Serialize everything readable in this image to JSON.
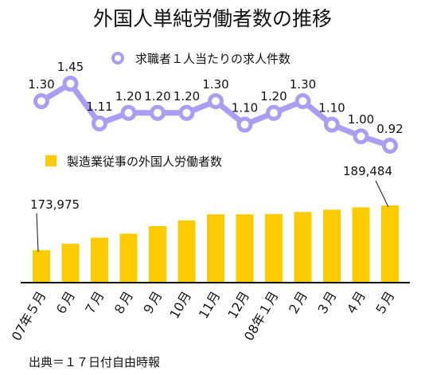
{
  "title": "外国人単純労働者数の推移",
  "source": "出典＝１７日付自由時報",
  "colors": {
    "line": "#a99ef2",
    "marker_fill": "#ffffff",
    "bar": "#fccb00",
    "text": "#111111"
  },
  "chart_data": {
    "type": "bar+line",
    "categories": [
      "07年５月",
      "６月",
      "７月",
      "８月",
      "９月",
      "10月",
      "11月",
      "12月",
      "08年１月",
      "２月",
      "３月",
      "４月",
      "５月"
    ],
    "series": [
      {
        "name": "求職者１人当たりの求人件数",
        "type": "line",
        "values": [
          1.3,
          1.45,
          1.11,
          1.2,
          1.2,
          1.2,
          1.3,
          1.1,
          1.2,
          1.3,
          1.1,
          1.0,
          0.92
        ],
        "labels": [
          "1.30",
          "1.45",
          "1.11",
          "1.20",
          "1.20",
          "1.20",
          "1.30",
          "1.10",
          "1.20",
          "1.30",
          "1.10",
          "1.00",
          "0.92"
        ]
      },
      {
        "name": "製造業従事の外国人労働者数",
        "type": "bar",
        "values": [
          173975,
          176200,
          178300,
          179700,
          182300,
          184300,
          186400,
          186400,
          186500,
          187200,
          188000,
          188800,
          189484
        ],
        "labels": [
          "173,975",
          "",
          "",
          "",
          "",
          "",
          "",
          "",
          "",
          "",
          "",
          "",
          "189,484"
        ]
      }
    ],
    "legend": [
      {
        "label": "求職者１人当たりの求人件数",
        "marker": "circle"
      },
      {
        "label": "製造業従事の外国人労働者数",
        "marker": "square"
      }
    ],
    "line_range": [
      0.92,
      1.45
    ],
    "bar_range": [
      163000,
      190500
    ],
    "grid": false
  }
}
